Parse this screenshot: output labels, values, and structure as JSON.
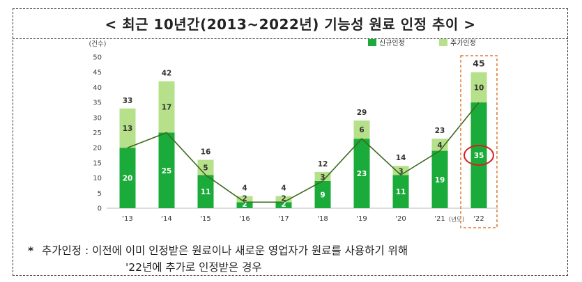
{
  "title": "< 최근 10년간(2013~2022년) 기능성 원료 인정 추이 >",
  "chart_data": {
    "type": "bar",
    "stacked": true,
    "categories": [
      "'13",
      "'14",
      "'15",
      "'16",
      "'17",
      "'18",
      "'19",
      "'20",
      "'21",
      "'22"
    ],
    "series": [
      {
        "name": "신규인정",
        "values": [
          20,
          25,
          11,
          2,
          2,
          9,
          23,
          11,
          19,
          35
        ],
        "color": "#1aab3a"
      },
      {
        "name": "추가인정",
        "values": [
          13,
          17,
          5,
          2,
          2,
          3,
          6,
          3,
          4,
          10
        ],
        "color": "#b6e08a"
      }
    ],
    "totals": [
      33,
      42,
      16,
      4,
      4,
      12,
      29,
      14,
      23,
      45
    ],
    "y_unit_label": "(건수)",
    "x_unit_label": "(년도)",
    "ylim": [
      0,
      50
    ],
    "yticks": [
      0,
      5,
      10,
      15,
      20,
      25,
      30,
      35,
      40,
      45,
      50
    ],
    "trend_line": {
      "series": "신규인정",
      "color": "#3c6b1e"
    },
    "highlight": {
      "category": "'22",
      "box_color": "#e0782f",
      "circle_color": "#d62020"
    },
    "legend_position": "top-right",
    "grid": false
  },
  "note": {
    "mark": "*",
    "line1": "추가인정 : 이전에 이미 인정받은 원료이나 새로운 영업자가 원료를 사용하기 위해",
    "line2": "'22년에 추가로 인정받은 경우"
  }
}
